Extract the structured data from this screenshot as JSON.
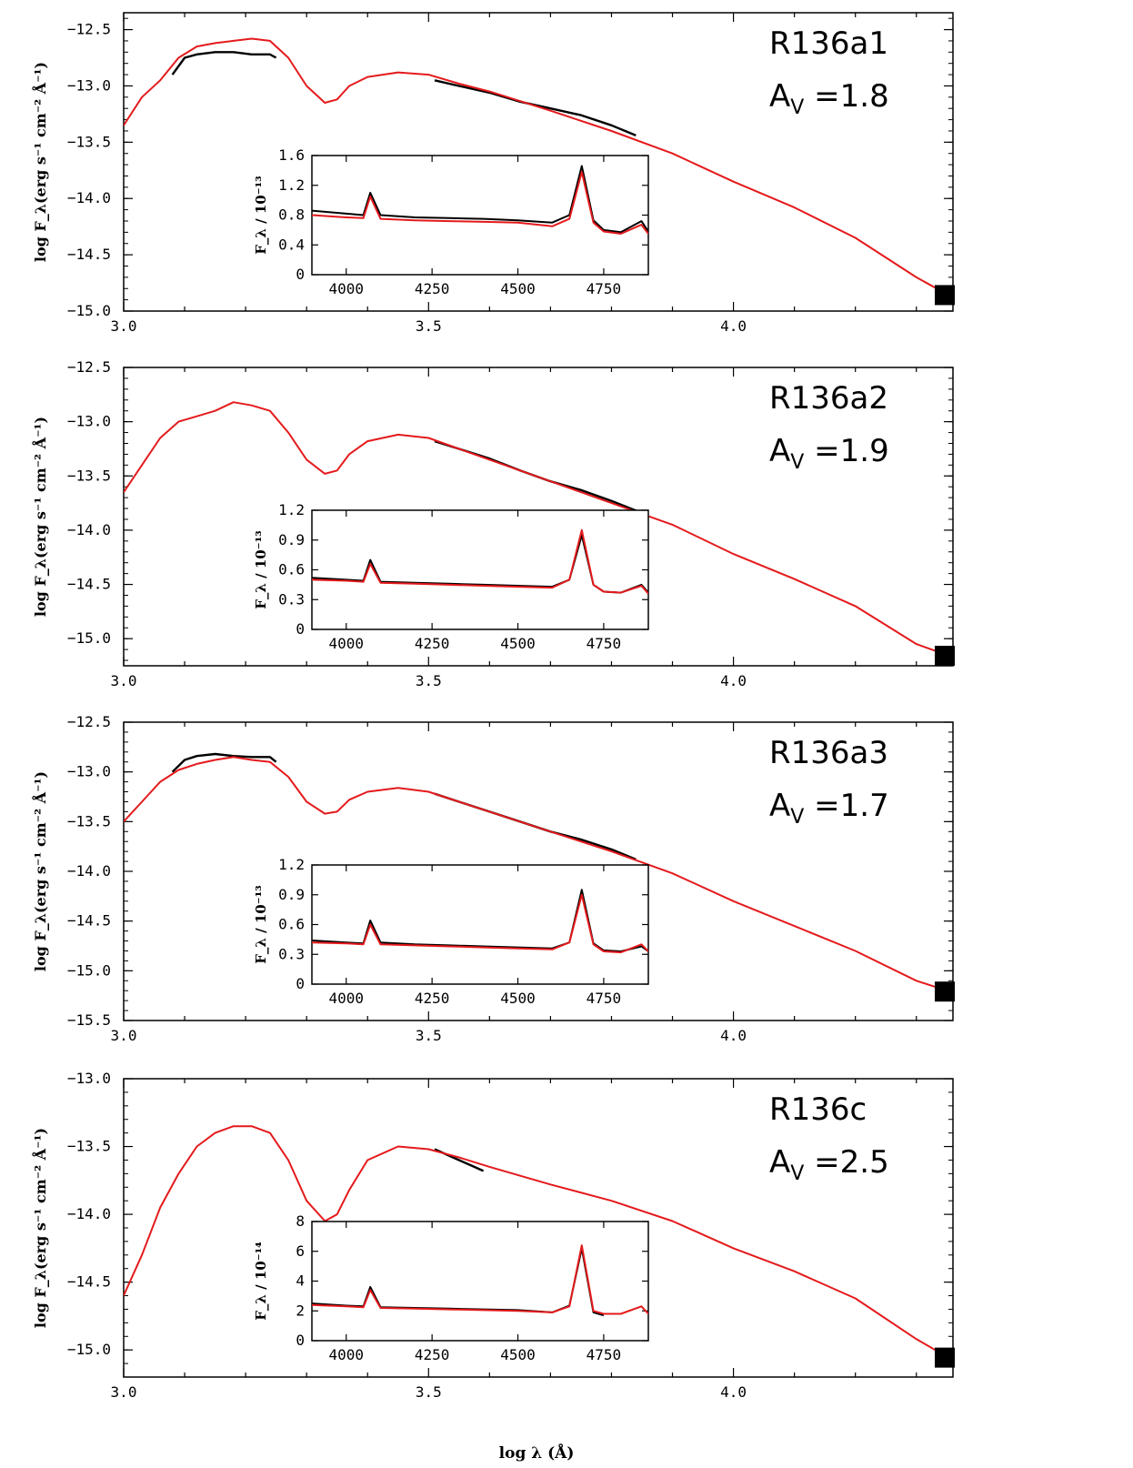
{
  "figure": {
    "xlabel": "log λ (Å)",
    "ylabel": "log F_λ(erg s⁻¹ cm⁻² Å⁻¹)",
    "colors": {
      "observed": "#000000",
      "model": "#e41a1c",
      "axes": "#000000"
    }
  },
  "chart_data": [
    {
      "type": "line",
      "panel": "R136a1",
      "title": "R136a1",
      "annotation": {
        "prefix": "A",
        "sub": "V",
        "text": " =1.8",
        "value": 1.8
      },
      "xlim": [
        3.0,
        4.36
      ],
      "ylim": [
        -15.0,
        -12.35
      ],
      "xticks": [
        3.0,
        3.5,
        4.0
      ],
      "xtick_labels": [
        "3.0",
        "3.5",
        "4.0"
      ],
      "yticks": [
        -12.5,
        -13.0,
        -13.5,
        -14.0,
        -14.5,
        -15.0
      ],
      "ytick_labels": [
        "−12.5",
        "−13.0",
        "−13.5",
        "−14.0",
        "−14.5",
        "−15.0"
      ],
      "series": [
        {
          "name": "model",
          "color": "#e41a1c",
          "x": [
            3.0,
            3.03,
            3.06,
            3.09,
            3.12,
            3.15,
            3.18,
            3.21,
            3.24,
            3.27,
            3.3,
            3.33,
            3.35,
            3.37,
            3.4,
            3.45,
            3.5,
            3.55,
            3.6,
            3.7,
            3.8,
            3.9,
            4.0,
            4.1,
            4.2,
            4.3,
            4.35
          ],
          "y": [
            -13.35,
            -13.1,
            -12.95,
            -12.75,
            -12.65,
            -12.62,
            -12.6,
            -12.58,
            -12.6,
            -12.75,
            -13.0,
            -13.15,
            -13.12,
            -13.0,
            -12.92,
            -12.88,
            -12.9,
            -12.98,
            -13.05,
            -13.22,
            -13.4,
            -13.6,
            -13.85,
            -14.08,
            -14.35,
            -14.7,
            -14.85
          ]
        },
        {
          "name": "observed UV",
          "color": "#000000",
          "x": [
            3.08,
            3.1,
            3.12,
            3.15,
            3.18,
            3.21,
            3.24,
            3.25
          ],
          "y": [
            -12.9,
            -12.75,
            -12.72,
            -12.7,
            -12.7,
            -12.72,
            -12.72,
            -12.75
          ]
        },
        {
          "name": "observed optical",
          "color": "#000000",
          "x": [
            3.51,
            3.55,
            3.6,
            3.65,
            3.7,
            3.75,
            3.8,
            3.84
          ],
          "y": [
            -12.95,
            -13.0,
            -13.06,
            -13.14,
            -13.2,
            -13.26,
            -13.35,
            -13.44
          ]
        }
      ],
      "inset": {
        "xlim": [
          3900,
          4880
        ],
        "ylim": [
          0,
          1.6
        ],
        "xticks": [
          4000,
          4250,
          4500,
          4750
        ],
        "xtick_labels": [
          "4000",
          "4250",
          "4500",
          "4750"
        ],
        "yticks": [
          0,
          0.4,
          0.8,
          1.2,
          1.6
        ],
        "ytick_labels": [
          "0",
          "0.4",
          "0.8",
          "1.2",
          "1.6"
        ],
        "ylabel": "F_λ / 10⁻¹³",
        "series": [
          {
            "name": "model",
            "color": "#e41a1c",
            "x": [
              3900,
              4000,
              4050,
              4070,
              4100,
              4200,
              4300,
              4400,
              4500,
              4600,
              4650,
              4686,
              4720,
              4750,
              4800,
              4860,
              4880
            ],
            "y": [
              0.8,
              0.77,
              0.76,
              1.05,
              0.75,
              0.73,
              0.72,
              0.71,
              0.7,
              0.65,
              0.75,
              1.38,
              0.7,
              0.58,
              0.55,
              0.67,
              0.55
            ]
          },
          {
            "name": "observed",
            "color": "#000000",
            "x": [
              3900,
              4000,
              4050,
              4070,
              4100,
              4200,
              4300,
              4400,
              4500,
              4600,
              4650,
              4686,
              4720,
              4750,
              4800,
              4860,
              4880
            ],
            "y": [
              0.86,
              0.82,
              0.8,
              1.1,
              0.8,
              0.77,
              0.76,
              0.75,
              0.73,
              0.7,
              0.8,
              1.46,
              0.73,
              0.6,
              0.57,
              0.72,
              0.58
            ]
          }
        ]
      }
    },
    {
      "type": "line",
      "panel": "R136a2",
      "title": "R136a2",
      "annotation": {
        "prefix": "A",
        "sub": "V",
        "text": " =1.9",
        "value": 1.9
      },
      "xlim": [
        3.0,
        4.36
      ],
      "ylim": [
        -15.25,
        -12.5
      ],
      "xticks": [
        3.0,
        3.5,
        4.0
      ],
      "xtick_labels": [
        "3.0",
        "3.5",
        "4.0"
      ],
      "yticks": [
        -12.5,
        -13.0,
        -13.5,
        -14.0,
        -14.5,
        -15.0
      ],
      "ytick_labels": [
        "−12.5",
        "−13.0",
        "−13.5",
        "−14.0",
        "−14.5",
        "−15.0"
      ],
      "series": [
        {
          "name": "model",
          "color": "#e41a1c",
          "x": [
            3.0,
            3.03,
            3.06,
            3.09,
            3.12,
            3.15,
            3.18,
            3.21,
            3.24,
            3.27,
            3.3,
            3.33,
            3.35,
            3.37,
            3.4,
            3.45,
            3.5,
            3.55,
            3.6,
            3.7,
            3.8,
            3.9,
            4.0,
            4.1,
            4.2,
            4.3,
            4.35
          ],
          "y": [
            -13.65,
            -13.4,
            -13.15,
            -13.0,
            -12.95,
            -12.9,
            -12.82,
            -12.85,
            -12.9,
            -13.1,
            -13.35,
            -13.48,
            -13.45,
            -13.3,
            -13.18,
            -13.12,
            -13.15,
            -13.25,
            -13.35,
            -13.55,
            -13.75,
            -13.95,
            -14.22,
            -14.45,
            -14.7,
            -15.05,
            -15.15
          ]
        },
        {
          "name": "observed optical",
          "color": "#000000",
          "x": [
            3.51,
            3.55,
            3.6,
            3.65,
            3.7,
            3.75,
            3.8,
            3.84
          ],
          "y": [
            -13.18,
            -13.25,
            -13.34,
            -13.45,
            -13.55,
            -13.63,
            -13.73,
            -13.82
          ]
        }
      ],
      "inset": {
        "xlim": [
          3900,
          4880
        ],
        "ylim": [
          0,
          1.2
        ],
        "xticks": [
          4000,
          4250,
          4500,
          4750
        ],
        "xtick_labels": [
          "4000",
          "4250",
          "4500",
          "4750"
        ],
        "yticks": [
          0,
          0.3,
          0.6,
          0.9,
          1.2
        ],
        "ytick_labels": [
          "0",
          "0.3",
          "0.6",
          "0.9",
          "1.2"
        ],
        "ylabel": "F_λ / 10⁻¹³",
        "series": [
          {
            "name": "model",
            "color": "#e41a1c",
            "x": [
              3900,
              4000,
              4050,
              4070,
              4100,
              4200,
              4300,
              4400,
              4500,
              4600,
              4650,
              4686,
              4720,
              4750,
              4800,
              4860,
              4880
            ],
            "y": [
              0.5,
              0.49,
              0.48,
              0.66,
              0.47,
              0.46,
              0.45,
              0.44,
              0.43,
              0.42,
              0.5,
              1.0,
              0.45,
              0.38,
              0.37,
              0.44,
              0.36
            ]
          },
          {
            "name": "observed",
            "color": "#000000",
            "x": [
              3900,
              4000,
              4050,
              4070,
              4100,
              4200,
              4300,
              4400,
              4500,
              4600,
              4650,
              4686,
              4720,
              4750,
              4800,
              4860,
              4880
            ],
            "y": [
              0.52,
              0.5,
              0.49,
              0.7,
              0.48,
              0.47,
              0.46,
              0.45,
              0.44,
              0.43,
              0.5,
              0.95,
              0.45,
              0.38,
              0.37,
              0.45,
              0.37
            ]
          }
        ]
      }
    },
    {
      "type": "line",
      "panel": "R136a3",
      "title": "R136a3",
      "annotation": {
        "prefix": "A",
        "sub": "V",
        "text": " =1.7",
        "value": 1.7
      },
      "xlim": [
        3.0,
        4.36
      ],
      "ylim": [
        -15.5,
        -12.5
      ],
      "xticks": [
        3.0,
        3.5,
        4.0
      ],
      "xtick_labels": [
        "3.0",
        "3.5",
        "4.0"
      ],
      "yticks": [
        -12.5,
        -13.0,
        -13.5,
        -14.0,
        -14.5,
        -15.0,
        -15.5
      ],
      "ytick_labels": [
        "−12.5",
        "−13.0",
        "−13.5",
        "−14.0",
        "−14.5",
        "−15.0",
        "−15.5"
      ],
      "series": [
        {
          "name": "model",
          "color": "#e41a1c",
          "x": [
            3.0,
            3.03,
            3.06,
            3.09,
            3.12,
            3.15,
            3.18,
            3.21,
            3.24,
            3.27,
            3.3,
            3.33,
            3.35,
            3.37,
            3.4,
            3.45,
            3.5,
            3.55,
            3.6,
            3.7,
            3.8,
            3.9,
            4.0,
            4.1,
            4.2,
            4.3,
            4.35
          ],
          "y": [
            -13.5,
            -13.3,
            -13.1,
            -12.98,
            -12.92,
            -12.88,
            -12.85,
            -12.88,
            -12.9,
            -13.05,
            -13.3,
            -13.42,
            -13.4,
            -13.28,
            -13.2,
            -13.16,
            -13.2,
            -13.3,
            -13.4,
            -13.6,
            -13.8,
            -14.02,
            -14.3,
            -14.55,
            -14.8,
            -15.1,
            -15.2
          ]
        },
        {
          "name": "observed UV",
          "color": "#000000",
          "x": [
            3.08,
            3.1,
            3.12,
            3.15,
            3.18,
            3.21,
            3.24,
            3.25
          ],
          "y": [
            -13.0,
            -12.88,
            -12.84,
            -12.82,
            -12.84,
            -12.85,
            -12.85,
            -12.9
          ]
        },
        {
          "name": "observed optical",
          "color": "#000000",
          "x": [
            3.51,
            3.55,
            3.6,
            3.65,
            3.7,
            3.75,
            3.8,
            3.84
          ],
          "y": [
            -13.22,
            -13.3,
            -13.4,
            -13.5,
            -13.6,
            -13.68,
            -13.78,
            -13.88
          ]
        }
      ],
      "inset": {
        "xlim": [
          3900,
          4880
        ],
        "ylim": [
          0,
          1.2
        ],
        "xticks": [
          4000,
          4250,
          4500,
          4750
        ],
        "xtick_labels": [
          "4000",
          "4250",
          "4500",
          "4750"
        ],
        "yticks": [
          0,
          0.3,
          0.6,
          0.9,
          1.2
        ],
        "ytick_labels": [
          "0",
          "0.3",
          "0.6",
          "0.9",
          "1.2"
        ],
        "ylabel": "F_λ / 10⁻¹³",
        "series": [
          {
            "name": "model",
            "color": "#e41a1c",
            "x": [
              3900,
              4000,
              4050,
              4070,
              4100,
              4200,
              4300,
              4400,
              4500,
              4600,
              4650,
              4686,
              4720,
              4750,
              4800,
              4860,
              4880
            ],
            "y": [
              0.42,
              0.41,
              0.4,
              0.6,
              0.4,
              0.39,
              0.38,
              0.37,
              0.36,
              0.35,
              0.42,
              0.9,
              0.4,
              0.33,
              0.32,
              0.4,
              0.33
            ]
          },
          {
            "name": "observed",
            "color": "#000000",
            "x": [
              3900,
              4000,
              4050,
              4070,
              4100,
              4200,
              4300,
              4400,
              4500,
              4600,
              4650,
              4686,
              4720,
              4750,
              4800,
              4860,
              4880
            ],
            "y": [
              0.44,
              0.42,
              0.41,
              0.64,
              0.42,
              0.4,
              0.39,
              0.38,
              0.37,
              0.36,
              0.42,
              0.95,
              0.41,
              0.34,
              0.33,
              0.38,
              0.33
            ]
          }
        ]
      }
    },
    {
      "type": "line",
      "panel": "R136c",
      "title": "R136c",
      "annotation": {
        "prefix": "A",
        "sub": "V",
        "text": " =2.5",
        "value": 2.5
      },
      "xlim": [
        3.0,
        4.36
      ],
      "ylim": [
        -15.2,
        -13.0
      ],
      "xticks": [
        3.0,
        3.5,
        4.0
      ],
      "xtick_labels": [
        "3.0",
        "3.5",
        "4.0"
      ],
      "yticks": [
        -13.0,
        -13.5,
        -14.0,
        -14.5,
        -15.0
      ],
      "ytick_labels": [
        "−13.0",
        "−13.5",
        "−14.0",
        "−14.5",
        "−15.0"
      ],
      "series": [
        {
          "name": "model",
          "color": "#e41a1c",
          "x": [
            3.0,
            3.03,
            3.06,
            3.09,
            3.12,
            3.15,
            3.18,
            3.21,
            3.24,
            3.27,
            3.3,
            3.33,
            3.35,
            3.37,
            3.4,
            3.45,
            3.5,
            3.55,
            3.6,
            3.7,
            3.8,
            3.9,
            4.0,
            4.1,
            4.2,
            4.3,
            4.35
          ],
          "y": [
            -14.6,
            -14.3,
            -13.95,
            -13.7,
            -13.5,
            -13.4,
            -13.35,
            -13.35,
            -13.4,
            -13.6,
            -13.9,
            -14.05,
            -14.0,
            -13.82,
            -13.6,
            -13.5,
            -13.52,
            -13.58,
            -13.65,
            -13.78,
            -13.9,
            -14.05,
            -14.25,
            -14.42,
            -14.62,
            -14.92,
            -15.05
          ]
        },
        {
          "name": "observed optical",
          "color": "#000000",
          "x": [
            3.51,
            3.53,
            3.55,
            3.57,
            3.59
          ],
          "y": [
            -13.52,
            -13.56,
            -13.6,
            -13.64,
            -13.68
          ]
        }
      ],
      "inset": {
        "xlim": [
          3900,
          4880
        ],
        "ylim": [
          0,
          8
        ],
        "xticks": [
          4000,
          4250,
          4500,
          4750
        ],
        "xtick_labels": [
          "4000",
          "4250",
          "4500",
          "4750"
        ],
        "yticks": [
          0,
          2,
          4,
          6,
          8
        ],
        "ytick_labels": [
          "0",
          "2",
          "4",
          "6",
          "8"
        ],
        "ylabel": "F_λ / 10⁻¹⁴",
        "series": [
          {
            "name": "model",
            "color": "#e41a1c",
            "x": [
              3900,
              4000,
              4050,
              4070,
              4100,
              4200,
              4300,
              4400,
              4500,
              4600,
              4650,
              4686,
              4720,
              4750,
              4800,
              4860,
              4880
            ],
            "y": [
              2.4,
              2.3,
              2.25,
              3.4,
              2.2,
              2.15,
              2.1,
              2.05,
              2.0,
              1.9,
              2.3,
              6.4,
              2.0,
              1.8,
              1.8,
              2.3,
              1.8
            ]
          },
          {
            "name": "observed",
            "color": "#000000",
            "x": [
              3900,
              4000,
              4050,
              4070,
              4100,
              4200,
              4300,
              4400,
              4500,
              4600,
              4650,
              4686,
              4720,
              4750
            ],
            "y": [
              2.5,
              2.35,
              2.3,
              3.6,
              2.25,
              2.2,
              2.15,
              2.1,
              2.05,
              1.9,
              2.35,
              6.2,
              1.9,
              1.7
            ]
          }
        ]
      }
    }
  ]
}
